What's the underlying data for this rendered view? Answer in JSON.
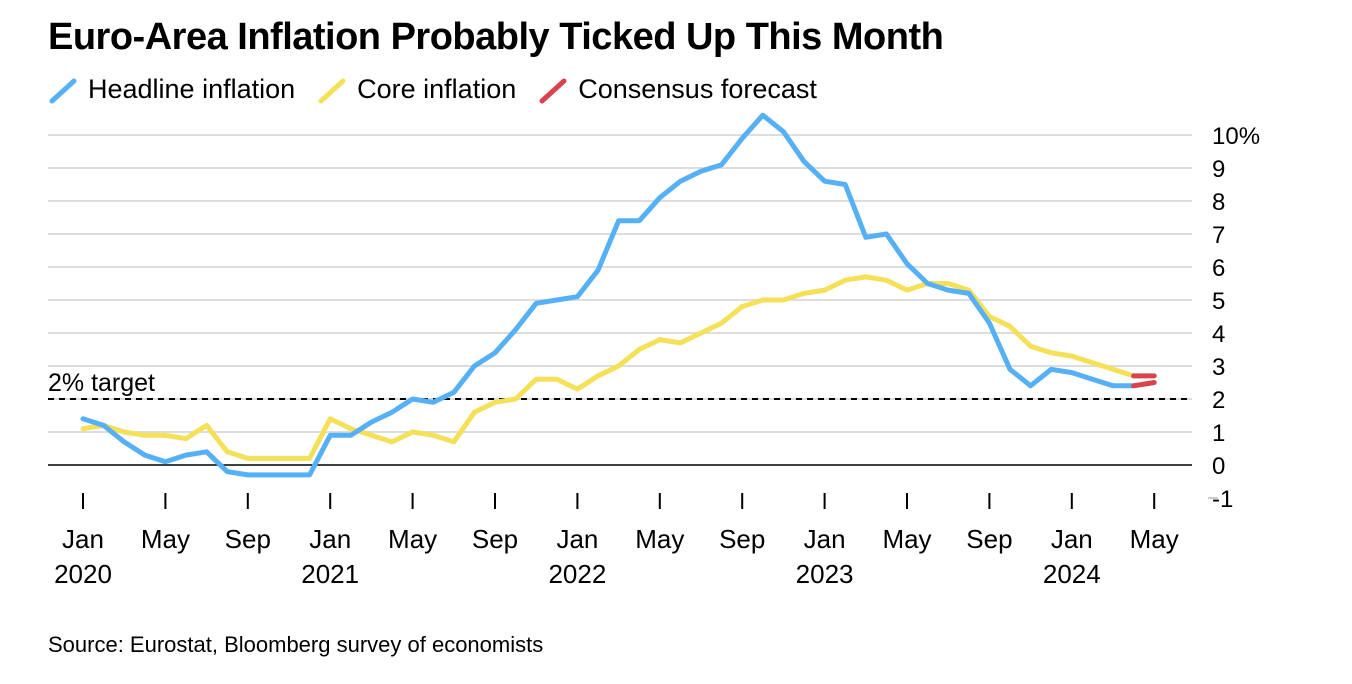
{
  "chart_data": {
    "type": "line",
    "title": "Euro-Area Inflation Probably Ticked Up This Month",
    "source": "Source: Eurostat, Bloomberg survey of economists",
    "ylim": [
      -1,
      10.5
    ],
    "y_ticks": [
      {
        "value": 10,
        "label": "10%"
      },
      {
        "value": 9,
        "label": "9"
      },
      {
        "value": 8,
        "label": "8"
      },
      {
        "value": 7,
        "label": "7"
      },
      {
        "value": 6,
        "label": "6"
      },
      {
        "value": 5,
        "label": "5"
      },
      {
        "value": 4,
        "label": "4"
      },
      {
        "value": 3,
        "label": "3"
      },
      {
        "value": 2,
        "label": "2"
      },
      {
        "value": 1,
        "label": "1"
      },
      {
        "value": 0,
        "label": "0"
      },
      {
        "value": -1,
        "label": "-1"
      }
    ],
    "x_start": "2020-01",
    "x_ticks": [
      {
        "month": "2020-01",
        "label": "Jan",
        "year": "2020"
      },
      {
        "month": "2020-05",
        "label": "May",
        "year": ""
      },
      {
        "month": "2020-09",
        "label": "Sep",
        "year": ""
      },
      {
        "month": "2021-01",
        "label": "Jan",
        "year": "2021"
      },
      {
        "month": "2021-05",
        "label": "May",
        "year": ""
      },
      {
        "month": "2021-09",
        "label": "Sep",
        "year": ""
      },
      {
        "month": "2022-01",
        "label": "Jan",
        "year": "2022"
      },
      {
        "month": "2022-05",
        "label": "May",
        "year": ""
      },
      {
        "month": "2022-09",
        "label": "Sep",
        "year": ""
      },
      {
        "month": "2023-01",
        "label": "Jan",
        "year": "2023"
      },
      {
        "month": "2023-05",
        "label": "May",
        "year": ""
      },
      {
        "month": "2023-09",
        "label": "Sep",
        "year": ""
      },
      {
        "month": "2024-01",
        "label": "Jan",
        "year": "2024"
      },
      {
        "month": "2024-05",
        "label": "May",
        "year": ""
      }
    ],
    "reference_line": {
      "value": 2,
      "label": "2% target"
    },
    "series": [
      {
        "name": "Headline inflation",
        "color": "#56b0f5",
        "values": [
          1.4,
          1.2,
          0.7,
          0.3,
          0.1,
          0.3,
          0.4,
          -0.2,
          -0.3,
          -0.3,
          -0.3,
          -0.3,
          0.9,
          0.9,
          1.3,
          1.6,
          2.0,
          1.9,
          2.2,
          3.0,
          3.4,
          4.1,
          4.9,
          5.0,
          5.1,
          5.9,
          7.4,
          7.4,
          8.1,
          8.6,
          8.9,
          9.1,
          9.9,
          10.6,
          10.1,
          9.2,
          8.6,
          8.5,
          6.9,
          7.0,
          6.1,
          5.5,
          5.3,
          5.2,
          4.3,
          2.9,
          2.4,
          2.9,
          2.8,
          2.6,
          2.4,
          2.4
        ]
      },
      {
        "name": "Core inflation",
        "color": "#f5e05a",
        "values": [
          1.1,
          1.2,
          1.0,
          0.9,
          0.9,
          0.8,
          1.2,
          0.4,
          0.2,
          0.2,
          0.2,
          0.2,
          1.4,
          1.1,
          0.9,
          0.7,
          1.0,
          0.9,
          0.7,
          1.6,
          1.9,
          2.0,
          2.6,
          2.6,
          2.3,
          2.7,
          3.0,
          3.5,
          3.8,
          3.7,
          4.0,
          4.3,
          4.8,
          5.0,
          5.0,
          5.2,
          5.3,
          5.6,
          5.7,
          5.6,
          5.3,
          5.5,
          5.5,
          5.3,
          4.5,
          4.2,
          3.6,
          3.4,
          3.3,
          3.1,
          2.9,
          2.7
        ]
      },
      {
        "name": "Consensus forecast",
        "color": "#d9434b",
        "segments": [
          {
            "month_from": "2024-04",
            "month_to": "2024-05",
            "from": 2.7,
            "to": 2.7
          },
          {
            "month_from": "2024-04",
            "month_to": "2024-05",
            "from": 2.4,
            "to": 2.5
          }
        ]
      }
    ]
  }
}
